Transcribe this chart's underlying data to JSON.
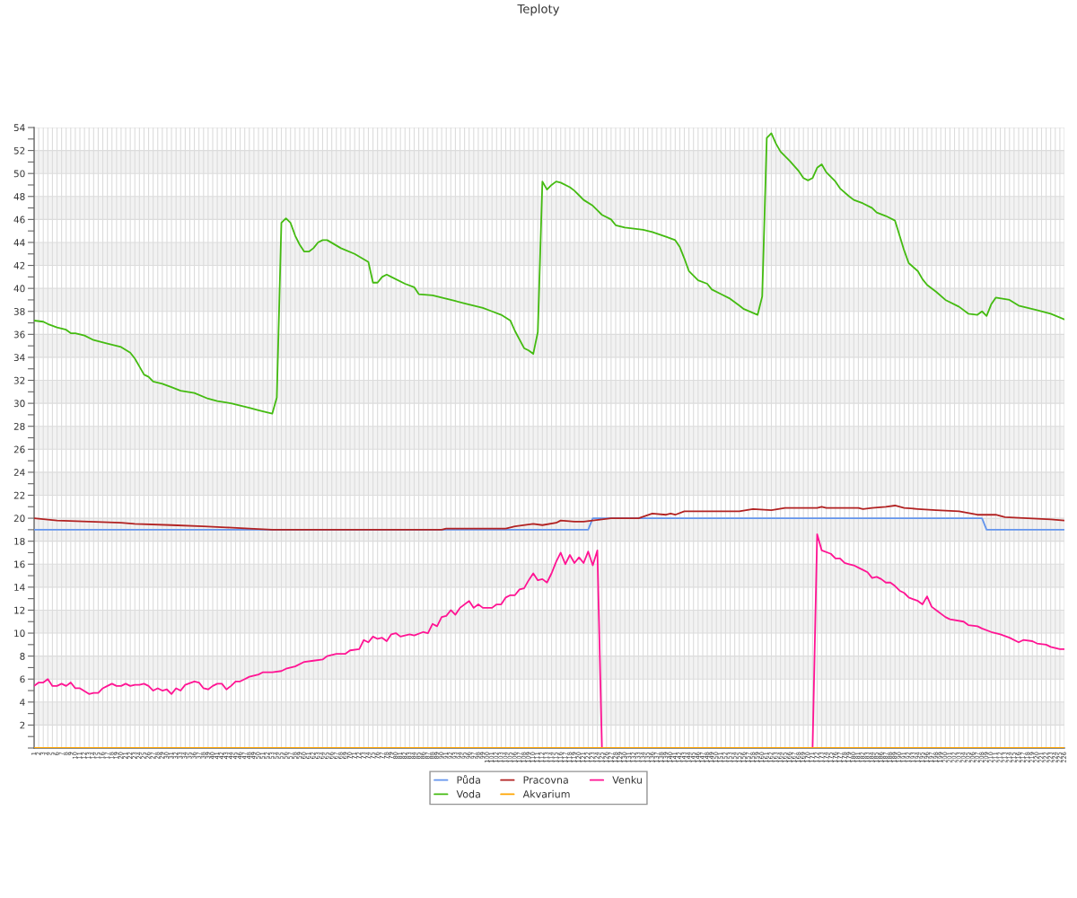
{
  "chart_data": {
    "type": "line",
    "title": "Teploty",
    "xlim": [
      1,
      226
    ],
    "ylim": [
      0,
      54
    ],
    "xticks": [
      1,
      2,
      3,
      4,
      5,
      6,
      7,
      8,
      9,
      10,
      11,
      12,
      13,
      14,
      15,
      16,
      17,
      18,
      19,
      20,
      21,
      22,
      23,
      24,
      25,
      26,
      27,
      28,
      29,
      30,
      31,
      32,
      33,
      34,
      35,
      36,
      37,
      38,
      39,
      40,
      41,
      42,
      43,
      44,
      45,
      46,
      47,
      48,
      49,
      50,
      51,
      52,
      53,
      54,
      55,
      56,
      57,
      58,
      59,
      60,
      61,
      62,
      63,
      64,
      65,
      66,
      67,
      68,
      69,
      70,
      71,
      72,
      73,
      74,
      75,
      76,
      77,
      78,
      79,
      80,
      81,
      82,
      83,
      84,
      85,
      86,
      87,
      88,
      89,
      90,
      91,
      92,
      93,
      94,
      95,
      96,
      97,
      98,
      99,
      100,
      101,
      102,
      103,
      104,
      105,
      106,
      107,
      108,
      109,
      110,
      111,
      112,
      113,
      114,
      115,
      116,
      117,
      118,
      119,
      120,
      121,
      122,
      123,
      124,
      125,
      126,
      127,
      128,
      129,
      130,
      131,
      132,
      133,
      134,
      135,
      136,
      137,
      138,
      139,
      140,
      141,
      142,
      143,
      144,
      145,
      146,
      147,
      148,
      149,
      150,
      151,
      152,
      153,
      154,
      155,
      156,
      157,
      158,
      159,
      160,
      161,
      162,
      163,
      164,
      165,
      166,
      167,
      168,
      169,
      170,
      171,
      172,
      173,
      174,
      175,
      176,
      177,
      178,
      179,
      180,
      181,
      182,
      183,
      184,
      185,
      186,
      187,
      188,
      189,
      190,
      191,
      192,
      193,
      194,
      195,
      196,
      197,
      198,
      199,
      200,
      201,
      202,
      203,
      204,
      205,
      206,
      207,
      208,
      209,
      210,
      211,
      212,
      213,
      214,
      215,
      216,
      217,
      218,
      219,
      220,
      221,
      222,
      223,
      224,
      225,
      226
    ],
    "yticks": [
      {
        "value": 0,
        "label": null
      },
      {
        "value": 1,
        "label": null
      },
      2,
      {
        "value": 3,
        "label": null
      },
      4,
      {
        "value": 5,
        "label": null
      },
      6,
      {
        "value": 7,
        "label": null
      },
      8,
      {
        "value": 9,
        "label": null
      },
      10,
      {
        "value": 11,
        "label": null
      },
      12,
      {
        "value": 13,
        "label": null
      },
      14,
      {
        "value": 15,
        "label": null
      },
      16,
      {
        "value": 17,
        "label": null
      },
      18,
      {
        "value": 19,
        "label": null
      },
      20,
      {
        "value": 21,
        "label": null
      },
      22,
      {
        "value": 23,
        "label": null
      },
      24,
      {
        "value": 25,
        "label": null
      },
      26,
      {
        "value": 27,
        "label": null
      },
      28,
      {
        "value": 29,
        "label": null
      },
      30,
      {
        "value": 31,
        "label": null
      },
      32,
      {
        "value": 33,
        "label": null
      },
      34,
      {
        "value": 35,
        "label": null
      },
      36,
      {
        "value": 37,
        "label": null
      },
      38,
      {
        "value": 39,
        "label": null
      },
      40,
      {
        "value": 41,
        "label": null
      },
      42,
      {
        "value": 43,
        "label": null
      },
      44,
      {
        "value": 45,
        "label": null
      },
      46,
      {
        "value": 47,
        "label": null
      },
      48,
      {
        "value": 49,
        "label": null
      },
      50,
      {
        "value": 51,
        "label": null
      },
      52,
      {
        "value": 53,
        "label": null
      },
      54
    ],
    "grid": true,
    "legend": "bottom",
    "series": [
      {
        "name": "Půda",
        "color": "#6495ed",
        "x": [
          1,
          122,
          123,
          208,
          209,
          226
        ],
        "values": [
          19.0,
          19.0,
          20.0,
          20.0,
          19.0,
          19.0
        ]
      },
      {
        "name": "Pracovna",
        "color": "#b22222",
        "x": [
          1,
          6,
          13,
          20,
          23,
          31,
          38,
          43,
          48,
          53,
          90,
          91,
          104,
          106,
          110,
          112,
          115,
          116,
          119,
          121,
          123,
          127,
          129,
          133,
          136,
          139,
          140,
          141,
          143,
          148,
          155,
          158,
          162,
          165,
          172,
          173,
          174,
          181,
          182,
          184,
          187,
          189,
          191,
          194,
          198,
          203,
          207,
          211,
          213,
          218,
          223,
          226
        ],
        "values": [
          20.0,
          19.8,
          19.7,
          19.6,
          19.5,
          19.4,
          19.3,
          19.2,
          19.1,
          19.0,
          19.0,
          19.1,
          19.1,
          19.3,
          19.5,
          19.4,
          19.6,
          19.8,
          19.7,
          19.7,
          19.8,
          20.0,
          20.0,
          20.0,
          20.4,
          20.3,
          20.4,
          20.3,
          20.6,
          20.6,
          20.6,
          20.8,
          20.7,
          20.9,
          20.9,
          21.0,
          20.9,
          20.9,
          20.8,
          20.9,
          21.0,
          21.1,
          20.9,
          20.8,
          20.7,
          20.6,
          20.3,
          20.3,
          20.1,
          20.0,
          19.9,
          19.8
        ]
      },
      {
        "name": "Venku",
        "color": "#ff1493",
        "x": [
          1,
          2,
          3,
          4,
          5,
          6,
          7,
          8,
          9,
          10,
          11,
          13,
          14,
          15,
          16,
          17,
          18,
          19,
          20,
          21,
          22,
          23,
          24,
          25,
          26,
          27,
          28,
          29,
          30,
          31,
          32,
          33,
          34,
          36,
          37,
          38,
          39,
          40,
          41,
          42,
          43,
          44,
          45,
          46,
          47,
          48,
          50,
          51,
          53,
          55,
          56,
          57,
          58,
          60,
          62,
          64,
          65,
          67,
          69,
          70,
          72,
          73,
          74,
          75,
          76,
          77,
          78,
          79,
          80,
          81,
          83,
          84,
          86,
          87,
          88,
          89,
          90,
          91,
          92,
          93,
          94,
          96,
          97,
          98,
          99,
          101,
          102,
          103,
          104,
          105,
          106,
          107,
          108,
          109,
          110,
          111,
          112,
          113,
          114,
          115,
          116,
          117,
          118,
          119,
          120,
          121,
          122,
          123,
          124,
          125,
          148,
          171,
          172,
          173,
          175,
          176,
          177,
          178,
          179,
          180,
          181,
          182,
          183,
          184,
          185,
          186,
          187,
          188,
          189,
          190,
          191,
          192,
          194,
          195,
          196,
          197,
          198,
          200,
          201,
          204,
          205,
          207,
          208,
          210,
          212,
          214,
          216,
          217,
          219,
          220,
          222,
          223,
          225,
          226
        ],
        "values": [
          5.4,
          5.7,
          5.7,
          6.0,
          5.4,
          5.4,
          5.6,
          5.4,
          5.7,
          5.2,
          5.2,
          4.7,
          4.8,
          4.8,
          5.2,
          5.4,
          5.6,
          5.4,
          5.4,
          5.6,
          5.4,
          5.5,
          5.5,
          5.6,
          5.4,
          5.0,
          5.2,
          5.0,
          5.1,
          4.7,
          5.2,
          5.0,
          5.5,
          5.8,
          5.7,
          5.2,
          5.1,
          5.4,
          5.6,
          5.6,
          5.1,
          5.4,
          5.8,
          5.8,
          6.0,
          6.2,
          6.4,
          6.6,
          6.6,
          6.7,
          6.9,
          7.0,
          7.1,
          7.5,
          7.6,
          7.7,
          8.0,
          8.2,
          8.2,
          8.5,
          8.6,
          9.4,
          9.2,
          9.7,
          9.5,
          9.6,
          9.3,
          9.9,
          10.0,
          9.7,
          9.9,
          9.8,
          10.1,
          10.0,
          10.8,
          10.6,
          11.4,
          11.5,
          12.0,
          11.6,
          12.2,
          12.8,
          12.2,
          12.5,
          12.2,
          12.2,
          12.5,
          12.5,
          13.1,
          13.3,
          13.3,
          13.8,
          13.9,
          14.6,
          15.2,
          14.6,
          14.7,
          14.4,
          15.2,
          16.2,
          17.0,
          16.0,
          16.8,
          16.1,
          16.6,
          16.1,
          17.1,
          15.9,
          17.2,
          0,
          null,
          0,
          18.6,
          17.2,
          16.9,
          16.5,
          16.5,
          16.1,
          16.0,
          15.9,
          15.7,
          15.5,
          15.3,
          14.8,
          14.9,
          14.7,
          14.4,
          14.4,
          14.1,
          13.7,
          13.5,
          13.1,
          12.8,
          12.5,
          13.2,
          12.3,
          12.0,
          11.4,
          11.2,
          11.0,
          10.7,
          10.6,
          10.4,
          10.1,
          9.9,
          9.6,
          9.2,
          9.4,
          9.3,
          9.1,
          9.0,
          8.8,
          8.6,
          8.6
        ]
      },
      {
        "name": "Voda",
        "color": "#44bb11",
        "x": [
          1,
          3,
          4,
          6,
          8,
          9,
          10,
          12,
          14,
          17,
          20,
          22,
          23,
          24,
          25,
          26,
          27,
          29,
          31,
          33,
          36,
          39,
          41,
          44,
          48,
          50,
          52,
          53,
          54,
          55,
          56,
          57,
          58,
          59,
          60,
          61,
          62,
          63,
          64,
          65,
          68,
          71,
          74,
          75,
          76,
          77,
          78,
          79,
          82,
          84,
          85,
          88,
          90,
          93,
          95,
          99,
          101,
          103,
          105,
          106,
          108,
          109,
          110,
          111,
          112,
          113,
          114,
          115,
          116,
          118,
          119,
          120,
          121,
          123,
          124,
          125,
          127,
          128,
          130,
          132,
          134,
          136,
          139,
          141,
          142,
          143,
          144,
          146,
          148,
          149,
          151,
          153,
          155,
          156,
          159,
          160,
          161,
          162,
          163,
          164,
          166,
          168,
          169,
          170,
          171,
          172,
          173,
          174,
          176,
          177,
          179,
          180,
          182,
          184,
          185,
          187,
          189,
          190,
          191,
          192,
          194,
          195,
          196,
          198,
          200,
          203,
          205,
          207,
          208,
          209,
          210,
          211,
          214,
          216,
          220,
          223,
          226
        ],
        "values": [
          37.2,
          37.1,
          36.9,
          36.6,
          36.4,
          36.1,
          36.1,
          35.9,
          35.5,
          35.2,
          34.9,
          34.4,
          33.9,
          33.2,
          32.5,
          32.3,
          31.9,
          31.7,
          31.4,
          31.1,
          30.9,
          30.4,
          30.2,
          30.0,
          29.6,
          29.4,
          29.2,
          29.1,
          30.5,
          45.7,
          46.1,
          45.7,
          44.6,
          43.8,
          43.2,
          43.2,
          43.5,
          44.0,
          44.2,
          44.2,
          43.5,
          43.0,
          42.3,
          40.5,
          40.5,
          41.0,
          41.2,
          41.0,
          40.4,
          40.1,
          39.5,
          39.4,
          39.2,
          38.9,
          38.7,
          38.3,
          38.0,
          37.7,
          37.2,
          36.3,
          34.8,
          34.6,
          34.3,
          36.2,
          49.3,
          48.6,
          49.0,
          49.3,
          49.2,
          48.8,
          48.5,
          48.1,
          47.7,
          47.2,
          46.8,
          46.4,
          46.0,
          45.5,
          45.3,
          45.2,
          45.1,
          44.9,
          44.5,
          44.2,
          43.6,
          42.6,
          41.5,
          40.7,
          40.4,
          39.9,
          39.5,
          39.1,
          38.5,
          38.2,
          37.7,
          39.3,
          53.1,
          53.5,
          52.6,
          51.9,
          51.1,
          50.2,
          49.6,
          49.4,
          49.6,
          50.5,
          50.8,
          50.1,
          49.3,
          48.7,
          48.0,
          47.7,
          47.4,
          47.0,
          46.6,
          46.3,
          45.9,
          44.6,
          43.3,
          42.2,
          41.5,
          40.8,
          40.3,
          39.7,
          39.0,
          38.4,
          37.8,
          37.7,
          38.0,
          37.6,
          38.6,
          39.2,
          39.0,
          38.5,
          38.1,
          37.8,
          37.3
        ]
      },
      {
        "name": "Akvarium",
        "color": "#ffa500",
        "x": [
          1,
          226
        ],
        "values": [
          0,
          0
        ]
      }
    ]
  }
}
